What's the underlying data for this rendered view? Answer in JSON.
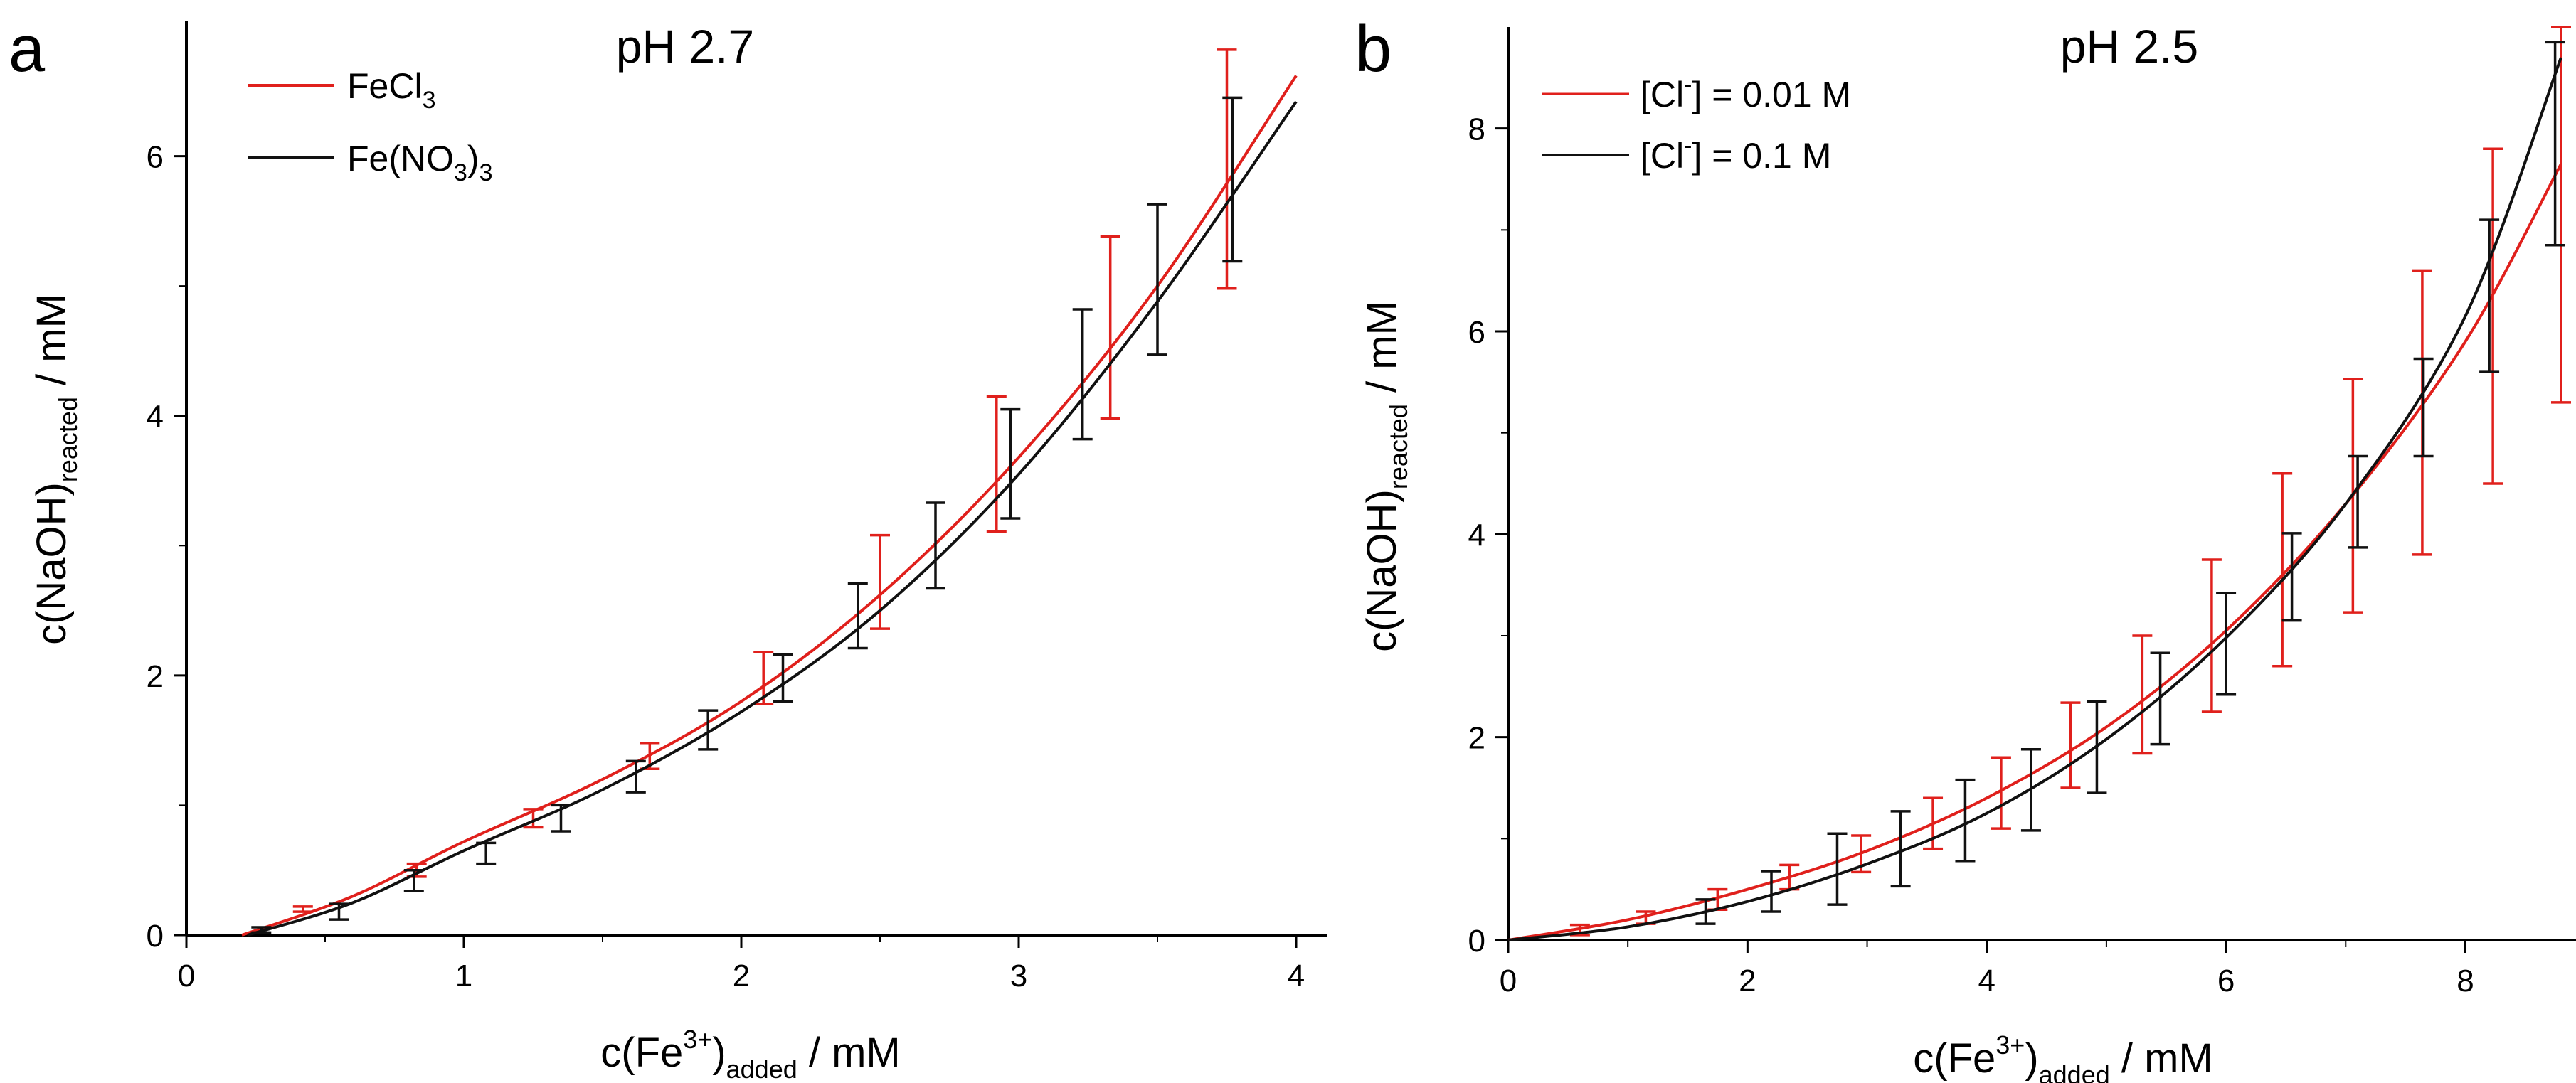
{
  "chart_data": [
    {
      "type": "line",
      "panel": "a",
      "title": "pH 2.7",
      "xlabel": {
        "main": "c(Fe",
        "sup": "3+",
        "close": ")",
        "sub": "added",
        "tail": " / mM"
      },
      "ylabel": {
        "main": "c(NaOH)",
        "sub": "reacted",
        "tail": " / mM"
      },
      "xlim": [
        0,
        4
      ],
      "ylim": [
        0,
        7
      ],
      "xticks": [
        0,
        1,
        2,
        3,
        4
      ],
      "yticks": [
        0,
        2,
        4,
        6
      ],
      "xtick_labels": [
        "0",
        "1",
        "2",
        "3",
        "4"
      ],
      "ytick_labels": [
        "0",
        "2",
        "4",
        "6"
      ],
      "legend_position": "top-left",
      "series": [
        {
          "name": "FeCl3",
          "legend": {
            "main": "FeCl",
            "sub": "3",
            "tail": ""
          },
          "color": "#e0201c",
          "curve": [
            [
              0.2,
              0
            ],
            [
              0.6,
              0.3
            ],
            [
              1.0,
              0.72
            ],
            [
              1.5,
              1.2
            ],
            [
              2.0,
              1.8
            ],
            [
              2.5,
              2.62
            ],
            [
              3.0,
              3.68
            ],
            [
              3.5,
              5.0
            ],
            [
              4.0,
              6.62
            ]
          ],
          "errorbars": [
            [
              0.42,
              0.2,
              0.02
            ],
            [
              0.83,
              0.5,
              0.05
            ],
            [
              1.25,
              0.9,
              0.07
            ],
            [
              1.67,
              1.38,
              0.1
            ],
            [
              2.08,
              1.98,
              0.2
            ],
            [
              2.5,
              2.72,
              0.36
            ],
            [
              2.92,
              3.63,
              0.52
            ],
            [
              3.33,
              4.68,
              0.7
            ],
            [
              3.75,
              5.9,
              0.92
            ]
          ]
        },
        {
          "name": "Fe(NO3)3",
          "legend": {
            "main": "Fe(NO",
            "sub": "3",
            "close": ")",
            "sub2": "3"
          },
          "color": "#111111",
          "curve": [
            [
              0.22,
              0
            ],
            [
              0.6,
              0.25
            ],
            [
              1.0,
              0.65
            ],
            [
              1.5,
              1.12
            ],
            [
              2.0,
              1.72
            ],
            [
              2.5,
              2.5
            ],
            [
              3.0,
              3.55
            ],
            [
              3.5,
              4.88
            ],
            [
              4.0,
              6.42
            ]
          ],
          "errorbars": [
            [
              0.27,
              0.04,
              0.02
            ],
            [
              0.55,
              0.18,
              0.06
            ],
            [
              0.82,
              0.42,
              0.08
            ],
            [
              1.08,
              0.63,
              0.08
            ],
            [
              1.35,
              0.9,
              0.1
            ],
            [
              1.62,
              1.22,
              0.12
            ],
            [
              1.88,
              1.58,
              0.15
            ],
            [
              2.15,
              1.98,
              0.18
            ],
            [
              2.42,
              2.46,
              0.25
            ],
            [
              2.7,
              3.0,
              0.33
            ],
            [
              2.97,
              3.63,
              0.42
            ],
            [
              3.23,
              4.32,
              0.5
            ],
            [
              3.5,
              5.05,
              0.58
            ],
            [
              3.77,
              5.82,
              0.63
            ]
          ]
        }
      ]
    },
    {
      "type": "line",
      "panel": "b",
      "title": "pH 2.5",
      "xlabel": {
        "main": "c(Fe",
        "sup": "3+",
        "close": ")",
        "sub": "added",
        "tail": " / mM"
      },
      "ylabel": {
        "main": "c(NaOH)",
        "sub": "reacted",
        "tail": " / mM"
      },
      "xlim": [
        0,
        8.8
      ],
      "ylim": [
        0,
        9
      ],
      "xticks": [
        0,
        2,
        4,
        6,
        8
      ],
      "yticks": [
        0,
        2,
        4,
        6,
        8
      ],
      "xtick_labels": [
        "0",
        "2",
        "4",
        "6",
        "8"
      ],
      "ytick_labels": [
        "0",
        "2",
        "4",
        "6",
        "8"
      ],
      "legend_position": "top-left",
      "series": [
        {
          "name": "[Cl-] = 0.01 M",
          "legend": {
            "main": "[Cl",
            "sup": "-",
            "tail": "] = 0.01 M"
          },
          "color": "#e0201c",
          "curve": [
            [
              0,
              0
            ],
            [
              1.0,
              0.2
            ],
            [
              2.0,
              0.5
            ],
            [
              3.0,
              0.88
            ],
            [
              4.0,
              1.4
            ],
            [
              5.0,
              2.1
            ],
            [
              6.0,
              3.05
            ],
            [
              7.0,
              4.3
            ],
            [
              8.0,
              5.9
            ],
            [
              8.8,
              7.65
            ]
          ],
          "errorbars": [
            [
              0.6,
              0.1,
              0.05
            ],
            [
              1.15,
              0.22,
              0.06
            ],
            [
              1.75,
              0.4,
              0.1
            ],
            [
              2.35,
              0.62,
              0.12
            ],
            [
              2.95,
              0.85,
              0.18
            ],
            [
              3.55,
              1.15,
              0.25
            ],
            [
              4.12,
              1.45,
              0.35
            ],
            [
              4.7,
              1.92,
              0.42
            ],
            [
              5.3,
              2.42,
              0.58
            ],
            [
              5.88,
              3.0,
              0.75
            ],
            [
              6.47,
              3.65,
              0.95
            ],
            [
              7.06,
              4.38,
              1.15
            ],
            [
              7.64,
              5.2,
              1.4
            ],
            [
              8.23,
              6.15,
              1.65
            ],
            [
              8.8,
              7.15,
              1.85
            ]
          ]
        },
        {
          "name": "[Cl-] = 0.1 M",
          "legend": {
            "main": "[Cl",
            "sup": "-",
            "tail": "] = 0.1 M"
          },
          "color": "#111111",
          "curve": [
            [
              0,
              0
            ],
            [
              1.0,
              0.13
            ],
            [
              2.0,
              0.38
            ],
            [
              3.0,
              0.75
            ],
            [
              4.0,
              1.25
            ],
            [
              5.0,
              1.98
            ],
            [
              6.0,
              2.98
            ],
            [
              7.0,
              4.3
            ],
            [
              8.0,
              6.15
            ],
            [
              8.8,
              8.7
            ]
          ],
          "errorbars": [
            [
              1.65,
              0.28,
              0.12
            ],
            [
              2.2,
              0.48,
              0.2
            ],
            [
              2.75,
              0.7,
              0.35
            ],
            [
              3.28,
              0.9,
              0.37
            ],
            [
              3.82,
              1.18,
              0.4
            ],
            [
              4.37,
              1.48,
              0.4
            ],
            [
              4.92,
              1.9,
              0.45
            ],
            [
              5.45,
              2.38,
              0.45
            ],
            [
              6.0,
              2.92,
              0.5
            ],
            [
              6.55,
              3.58,
              0.43
            ],
            [
              7.1,
              4.32,
              0.45
            ],
            [
              7.65,
              5.25,
              0.48
            ],
            [
              8.2,
              6.35,
              0.75
            ],
            [
              8.75,
              7.85,
              1.0
            ]
          ]
        }
      ]
    }
  ]
}
